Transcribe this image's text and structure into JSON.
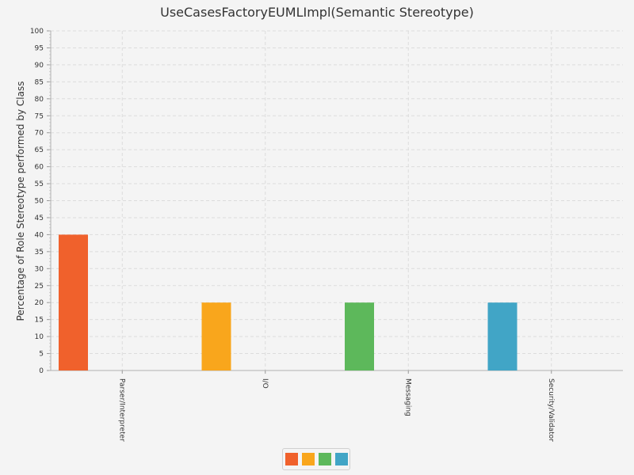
{
  "chart_data": {
    "type": "bar",
    "title": "UseCasesFactoryEUMLImpl(Semantic Stereotype)",
    "ylabel": "Percentage of Role Stereotype performed by Class",
    "xlabel": "",
    "ylim": [
      0,
      100
    ],
    "ytick_step": 5,
    "categories": [
      "Parser/Interpreter",
      "I/O",
      "Messaging",
      "Security/Validator"
    ],
    "values": [
      40,
      20,
      20,
      20
    ],
    "colors": [
      "#f0612c",
      "#f9a61c",
      "#5db85b",
      "#41a5c6"
    ],
    "grid": true,
    "legend": "bottom-center"
  }
}
